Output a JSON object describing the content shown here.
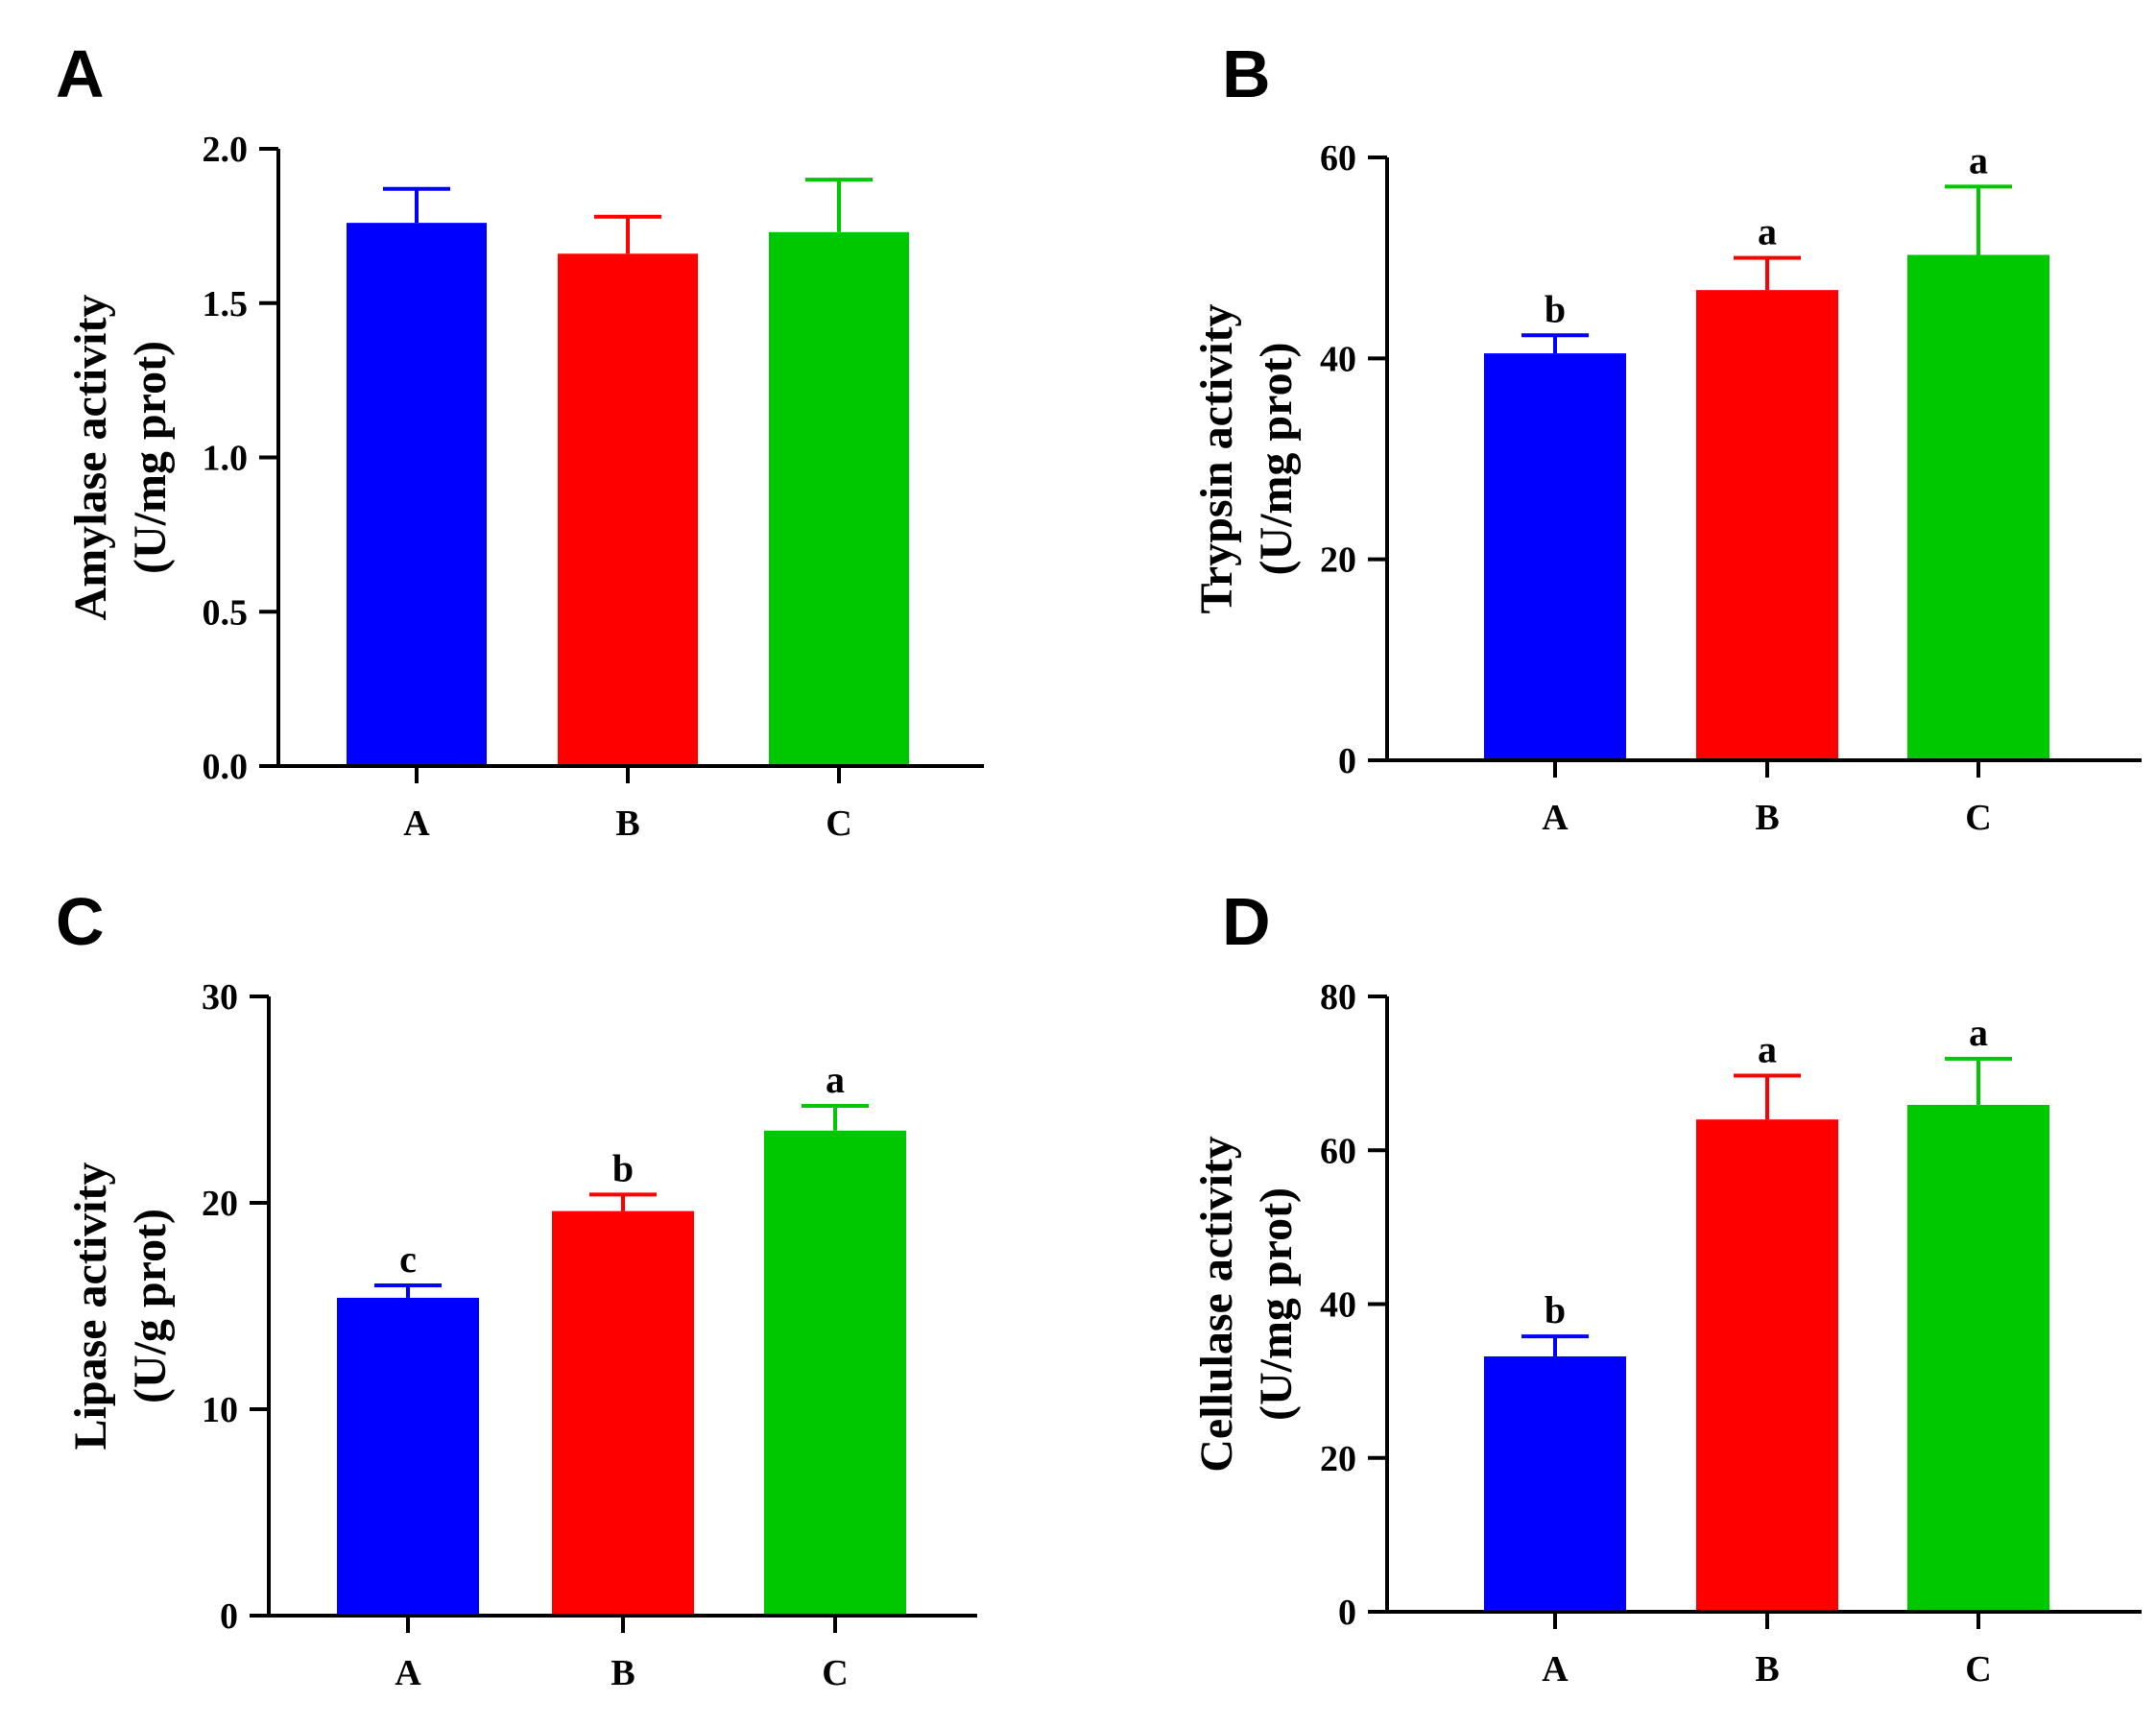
{
  "chart_data": [
    {
      "type": "bar",
      "panel_label": "A",
      "categories": [
        "A",
        "B",
        "C"
      ],
      "values": [
        1.76,
        1.66,
        1.73
      ],
      "errors": [
        0.11,
        0.12,
        0.17
      ],
      "significance": [
        "",
        "",
        ""
      ],
      "colors": [
        "#0000ff",
        "#ff0000",
        "#00c800"
      ],
      "ylabel": [
        "Amylase activity",
        "(U/mg prot)"
      ],
      "ylim": [
        0,
        2.0
      ],
      "yticks": [
        0.0,
        0.5,
        1.0,
        1.5,
        2.0
      ],
      "ytick_labels": [
        "0.0",
        "0.5",
        "1.0",
        "1.5",
        "2.0"
      ]
    },
    {
      "type": "bar",
      "panel_label": "B",
      "categories": [
        "A",
        "B",
        "C"
      ],
      "values": [
        40.5,
        46.8,
        50.3
      ],
      "errors": [
        1.8,
        3.2,
        6.8
      ],
      "significance": [
        "b",
        "a",
        "a"
      ],
      "colors": [
        "#0000ff",
        "#ff0000",
        "#00c800"
      ],
      "ylabel": [
        "Trypsin activity",
        "(U/mg prot)"
      ],
      "ylim": [
        0,
        60
      ],
      "yticks": [
        0,
        20,
        40,
        60
      ],
      "ytick_labels": [
        "0",
        "20",
        "40",
        "60"
      ]
    },
    {
      "type": "bar",
      "panel_label": "C",
      "categories": [
        "A",
        "B",
        "C"
      ],
      "values": [
        15.4,
        19.6,
        23.5
      ],
      "errors": [
        0.6,
        0.8,
        1.2
      ],
      "significance": [
        "c",
        "b",
        "a"
      ],
      "colors": [
        "#0000ff",
        "#ff0000",
        "#00c800"
      ],
      "ylabel": [
        "Lipase activity",
        "(U/g prot)"
      ],
      "ylim": [
        0,
        30
      ],
      "yticks": [
        0,
        10,
        20,
        30
      ],
      "ytick_labels": [
        "0",
        "10",
        "20",
        "30"
      ]
    },
    {
      "type": "bar",
      "panel_label": "D",
      "categories": [
        "A",
        "B",
        "C"
      ],
      "values": [
        33.2,
        64.0,
        65.9
      ],
      "errors": [
        2.6,
        5.7,
        6.0
      ],
      "significance": [
        "b",
        "a",
        "a"
      ],
      "colors": [
        "#0000ff",
        "#ff0000",
        "#00c800"
      ],
      "ylabel": [
        "Cellulase activity",
        "(U/mg prot)"
      ],
      "ylim": [
        0,
        80
      ],
      "yticks": [
        0,
        20,
        40,
        60,
        80
      ],
      "ytick_labels": [
        "0",
        "20",
        "40",
        "60",
        "80"
      ]
    }
  ]
}
